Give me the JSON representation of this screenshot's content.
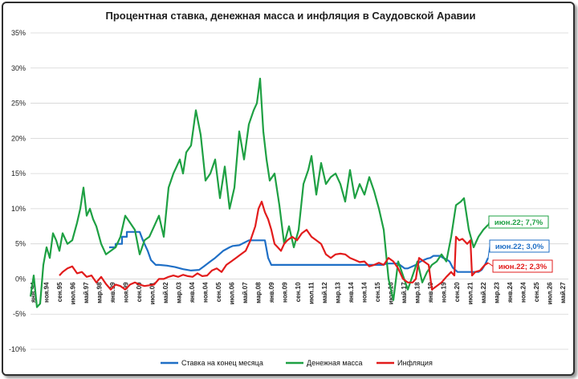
{
  "chart_data": {
    "type": "line",
    "title": "Процентная ставка, денежная масса и инфляция в Саудовской Аравии",
    "ylim": [
      -10,
      35
    ],
    "y_ticks": [
      "-10%",
      "-5%",
      "0%",
      "5%",
      "10%",
      "15%",
      "20%",
      "25%",
      "30%",
      "35%"
    ],
    "x_ticks": [
      "янв.94",
      "ноя.94",
      "сен.95",
      "июл.96",
      "май.97",
      "мар.98",
      "янв.99",
      "ноя.99",
      "сен.00",
      "июл.01",
      "май.02",
      "мар.03",
      "янв.04",
      "ноя.04",
      "сен.05",
      "июл.06",
      "май.07",
      "мар.08",
      "янв.09",
      "ноя.09",
      "сен.10",
      "июл.11",
      "май.12",
      "мар.13",
      "янв.14",
      "ноя.14",
      "сен.15",
      "июл.16",
      "май.17",
      "мар.18",
      "янв.19",
      "ноя.19",
      "сен.20",
      "июл.21",
      "май.22",
      "мар.23",
      "янв.24",
      "ноя.24",
      "сен.25",
      "июл.26",
      "май.27"
    ],
    "x_range": [
      1994.0,
      2027.5
    ],
    "grid": true,
    "legend_position": "bottom",
    "series": [
      {
        "name": "Ставка на конец месяца",
        "color": "#1f6fc6",
        "x": [
          1998.9,
          1999.3,
          1999.3,
          1999.7,
          1999.7,
          2000.0,
          2000.0,
          2000.8,
          2001.0,
          2001.3,
          2001.5,
          2001.8,
          2002.0,
          2002.5,
          2003.0,
          2003.5,
          2004.0,
          2004.5,
          2004.8,
          2005.2,
          2005.5,
          2005.8,
          2006.0,
          2006.4,
          2006.6,
          2007.0,
          2007.6,
          2008.0,
          2008.6,
          2008.8,
          2009.0,
          2010.0,
          2012.0,
          2014.0,
          2015.9,
          2016.2,
          2016.9,
          2017.3,
          2017.5,
          2018.0,
          2018.3,
          2018.5,
          2018.7,
          2018.9,
          2019.1,
          2019.5,
          2019.7,
          2019.9,
          2020.1,
          2020.3,
          2020.6,
          2021.0,
          2021.5,
          2021.9,
          2022.1,
          2022.3,
          2022.5
        ],
        "y": [
          4.5,
          4.5,
          5.0,
          5.0,
          6.0,
          6.0,
          6.7,
          6.7,
          5.5,
          4.0,
          2.7,
          2.0,
          2.0,
          1.9,
          1.7,
          1.4,
          1.2,
          1.3,
          1.8,
          2.5,
          3.0,
          3.6,
          4.0,
          4.5,
          4.7,
          4.8,
          5.5,
          5.5,
          5.5,
          3.0,
          2.0,
          2.0,
          2.0,
          2.0,
          2.0,
          2.2,
          2.2,
          1.5,
          1.5,
          2.0,
          2.5,
          2.7,
          2.9,
          3.0,
          3.3,
          3.3,
          3.0,
          2.8,
          2.5,
          1.6,
          1.0,
          1.0,
          1.0,
          1.0,
          1.3,
          2.0,
          3.0
        ]
      },
      {
        "name": "Денежная масса",
        "color": "#1ea043",
        "x": [
          1994.0,
          1994.2,
          1994.4,
          1994.6,
          1994.8,
          1995.0,
          1995.2,
          1995.4,
          1995.6,
          1995.8,
          1996.0,
          1996.3,
          1996.6,
          1996.9,
          1997.1,
          1997.3,
          1997.5,
          1997.7,
          1997.9,
          1998.1,
          1998.4,
          1998.7,
          1999.0,
          1999.3,
          1999.6,
          1999.9,
          2000.2,
          2000.5,
          2000.8,
          2001.1,
          2001.4,
          2001.7,
          2002.0,
          2002.3,
          2002.6,
          2002.9,
          2003.1,
          2003.3,
          2003.5,
          2003.7,
          2004.0,
          2004.3,
          2004.6,
          2004.9,
          2005.2,
          2005.5,
          2005.8,
          2006.1,
          2006.4,
          2006.7,
          2007.0,
          2007.3,
          2007.6,
          2007.9,
          2008.1,
          2008.3,
          2008.5,
          2008.7,
          2008.9,
          2009.2,
          2009.5,
          2009.8,
          2010.1,
          2010.4,
          2010.7,
          2011.0,
          2011.3,
          2011.5,
          2011.8,
          2012.1,
          2012.4,
          2012.7,
          2013.0,
          2013.3,
          2013.6,
          2013.9,
          2014.2,
          2014.5,
          2014.8,
          2015.1,
          2015.4,
          2015.7,
          2016.0,
          2016.3,
          2016.6,
          2016.9,
          2017.2,
          2017.5,
          2017.8,
          2018.1,
          2018.4,
          2018.7,
          2019.0,
          2019.3,
          2019.6,
          2019.9,
          2020.2,
          2020.5,
          2020.8,
          2021.0,
          2021.3,
          2021.6,
          2021.9,
          2022.2,
          2022.5
        ],
        "y": [
          -2.5,
          0.5,
          -4.0,
          -3.5,
          2.0,
          4.5,
          3.0,
          6.5,
          5.5,
          4.0,
          6.5,
          5.0,
          5.5,
          8.0,
          10.0,
          13.0,
          9.0,
          10.0,
          8.5,
          7.5,
          5.0,
          3.5,
          4.0,
          4.5,
          6.0,
          9.0,
          8.0,
          7.0,
          3.5,
          5.5,
          6.0,
          7.5,
          9.0,
          6.0,
          13.0,
          15.0,
          16.0,
          17.0,
          15.0,
          18.0,
          19.0,
          24.0,
          20.5,
          14.0,
          15.0,
          17.0,
          11.5,
          16.0,
          10.0,
          13.0,
          21.0,
          17.0,
          22.0,
          24.0,
          25.0,
          28.5,
          21.0,
          17.0,
          14.0,
          15.0,
          10.5,
          5.0,
          7.5,
          4.5,
          7.0,
          13.5,
          15.5,
          17.5,
          12.0,
          16.5,
          13.5,
          14.5,
          15.0,
          13.5,
          11.0,
          15.5,
          11.5,
          13.5,
          12.0,
          14.5,
          12.5,
          10.0,
          7.0,
          0.0,
          -3.0,
          2.5,
          0.5,
          -1.5,
          0.5,
          2.5,
          -0.5,
          1.0,
          2.0,
          2.5,
          3.5,
          2.5,
          6.0,
          10.5,
          11.0,
          11.5,
          7.0,
          4.5,
          6.0,
          7.0,
          7.7
        ]
      },
      {
        "name": "Инфляция",
        "color": "#e21c1c",
        "x": [
          1995.8,
          1996.0,
          1996.3,
          1996.6,
          1996.9,
          1997.2,
          1997.5,
          1997.8,
          1998.1,
          1998.4,
          1998.7,
          1999.0,
          1999.3,
          1999.6,
          1999.9,
          2000.2,
          2000.5,
          2000.8,
          2001.1,
          2001.4,
          2001.7,
          2002.0,
          2002.3,
          2002.6,
          2002.9,
          2003.2,
          2003.5,
          2003.8,
          2004.1,
          2004.4,
          2004.7,
          2005.0,
          2005.3,
          2005.6,
          2005.9,
          2006.2,
          2006.5,
          2006.8,
          2007.1,
          2007.4,
          2007.7,
          2008.0,
          2008.2,
          2008.4,
          2008.6,
          2008.8,
          2009.0,
          2009.2,
          2009.4,
          2009.6,
          2009.8,
          2010.0,
          2010.3,
          2010.6,
          2010.9,
          2011.2,
          2011.5,
          2011.8,
          2012.1,
          2012.4,
          2012.7,
          2013.0,
          2013.3,
          2013.6,
          2013.9,
          2014.2,
          2014.5,
          2014.8,
          2015.1,
          2015.4,
          2015.7,
          2016.0,
          2016.3,
          2016.6,
          2016.9,
          2017.2,
          2017.5,
          2017.8,
          2018.0,
          2018.2,
          2018.5,
          2018.8,
          2019.0,
          2019.3,
          2019.6,
          2019.9,
          2020.2,
          2020.4,
          2020.5,
          2020.7,
          2020.9,
          2021.2,
          2021.4,
          2021.5,
          2021.7,
          2022.0,
          2022.3,
          2022.5
        ],
        "y": [
          0.5,
          1.0,
          1.5,
          1.8,
          0.8,
          1.0,
          0.3,
          0.5,
          -0.5,
          0.3,
          -0.7,
          -1.5,
          -0.8,
          -1.0,
          -1.5,
          -0.8,
          -0.5,
          -0.8,
          -1.0,
          -0.9,
          -0.8,
          0.0,
          0.0,
          0.3,
          0.5,
          0.3,
          0.6,
          0.4,
          0.3,
          0.8,
          0.4,
          0.5,
          1.2,
          1.5,
          1.0,
          2.0,
          2.5,
          3.0,
          3.5,
          4.0,
          5.5,
          7.5,
          10.0,
          11.0,
          9.5,
          8.5,
          7.0,
          5.0,
          4.5,
          4.0,
          5.0,
          5.5,
          6.0,
          5.5,
          6.5,
          7.0,
          6.0,
          5.5,
          5.0,
          3.5,
          3.0,
          3.5,
          3.6,
          3.5,
          3.0,
          2.7,
          2.4,
          2.5,
          1.8,
          2.0,
          2.3,
          2.0,
          3.0,
          2.5,
          1.5,
          0.0,
          -0.5,
          -0.5,
          0.0,
          3.0,
          2.5,
          2.0,
          -1.5,
          -1.0,
          -0.5,
          0.3,
          1.0,
          0.5,
          6.0,
          5.5,
          5.7,
          5.0,
          5.5,
          0.5,
          1.0,
          1.2,
          2.0,
          2.3
        ]
      }
    ],
    "annotations": [
      {
        "text": "июн.22; 7,7%",
        "series": "Денежная масса",
        "color": "#1ea043"
      },
      {
        "text": "июн.22; 3,0%",
        "series": "Ставка на конец месяца",
        "color": "#1f6fc6"
      },
      {
        "text": "июн.22; 2,3%",
        "series": "Инфляция",
        "color": "#e21c1c"
      }
    ]
  }
}
